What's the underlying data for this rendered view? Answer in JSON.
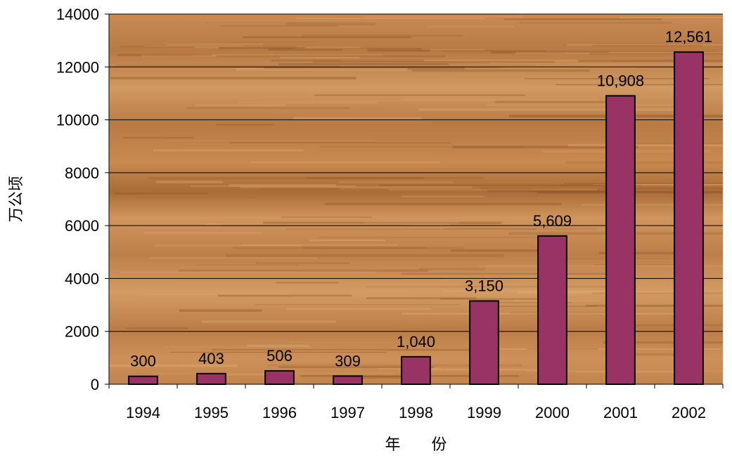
{
  "chart_data": {
    "type": "bar",
    "title": "",
    "xlabel": "年　　份",
    "ylabel": "万公顷",
    "categories": [
      "1994",
      "1995",
      "1996",
      "1997",
      "1998",
      "1999",
      "2000",
      "2001",
      "2002"
    ],
    "values": [
      300,
      403,
      506,
      309,
      1040,
      3150,
      5609,
      10908,
      12561
    ],
    "data_labels": [
      "300",
      "403",
      "506",
      "309",
      "1,040",
      "3,150",
      "5,609",
      "10,908",
      "12,561"
    ],
    "ylim": [
      0,
      14000
    ],
    "yticks": [
      0,
      2000,
      4000,
      6000,
      8000,
      10000,
      12000,
      14000
    ],
    "ytick_labels": [
      "0",
      "2000",
      "4000",
      "6000",
      "8000",
      "10000",
      "12000",
      "14000"
    ],
    "grid": true,
    "legend": "none",
    "colors": {
      "bar": "#993366",
      "bar_border": "#000000",
      "grid": "#000000",
      "wood_base": "#c88a52"
    }
  }
}
